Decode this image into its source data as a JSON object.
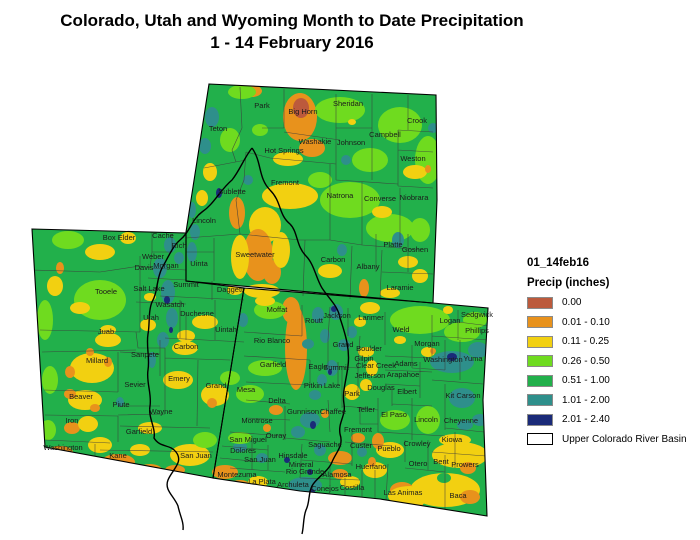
{
  "title": {
    "line1": "Colorado, Utah and Wyoming Month to Date Precipitation",
    "line2": "1 - 14 February 2016"
  },
  "legend": {
    "title": "01_14feb16",
    "subtitle": "Precip (inches)",
    "items": [
      {
        "label": "0.00",
        "color": "#bc5a3c"
      },
      {
        "label": "0.01 - 0.10",
        "color": "#e8921c"
      },
      {
        "label": "0.11 - 0.25",
        "color": "#f2d011"
      },
      {
        "label": "0.26 - 0.50",
        "color": "#6fdb1f"
      },
      {
        "label": "0.51 - 1.00",
        "color": "#22b04b"
      },
      {
        "label": "1.01 - 2.00",
        "color": "#2e8f8b"
      },
      {
        "label": "2.01 - 2.40",
        "color": "#1a2a78"
      }
    ],
    "overlay_item": {
      "label": "Upper Colorado River Basin",
      "color": "#ffffff"
    }
  },
  "map": {
    "states": [
      "Wyoming",
      "Utah",
      "Colorado"
    ],
    "counties": {
      "wyoming": [
        [
          "Park",
          262,
          108
        ],
        [
          "Big Horn",
          303,
          114
        ],
        [
          "Sheridan",
          348,
          106
        ],
        [
          "Crook",
          417,
          123
        ],
        [
          "Campbell",
          385,
          137
        ],
        [
          "Johnson",
          351,
          145
        ],
        [
          "Washakie",
          315,
          144
        ],
        [
          "Hot Springs",
          284,
          153
        ],
        [
          "Teton",
          218,
          131
        ],
        [
          "Weston",
          413,
          161
        ],
        [
          "Fremont",
          285,
          185
        ],
        [
          "Natrona",
          340,
          198
        ],
        [
          "Converse",
          380,
          201
        ],
        [
          "Niobrara",
          414,
          200
        ],
        [
          "Sublette",
          232,
          194
        ],
        [
          "Lincoln",
          204,
          223
        ],
        [
          "Sweetwater",
          255,
          257
        ],
        [
          "Carbon",
          333,
          262
        ],
        [
          "Albany",
          368,
          269
        ],
        [
          "Platte",
          393,
          247
        ],
        [
          "Goshen",
          415,
          252
        ],
        [
          "Laramie",
          400,
          290
        ],
        [
          "Uinta",
          199,
          266
        ]
      ],
      "utah": [
        [
          "Box Elder",
          119,
          240
        ],
        [
          "Cache",
          163,
          238
        ],
        [
          "Rich",
          179,
          248
        ],
        [
          "Weber",
          153,
          259
        ],
        [
          "Davis",
          144,
          270
        ],
        [
          "Morgan",
          166,
          268
        ],
        [
          "Salt Lake",
          149,
          291
        ],
        [
          "Summit",
          186,
          287
        ],
        [
          "Tooele",
          106,
          294
        ],
        [
          "Wasatch",
          170,
          307
        ],
        [
          "Utah",
          151,
          320
        ],
        [
          "Duchesne",
          197,
          316
        ],
        [
          "Uintah",
          226,
          332
        ],
        [
          "Daggett",
          230,
          292
        ],
        [
          "Juab",
          106,
          334
        ],
        [
          "Carbon",
          186,
          349
        ],
        [
          "Sanpete",
          145,
          357
        ],
        [
          "Millard",
          97,
          363
        ],
        [
          "Emery",
          179,
          381
        ],
        [
          "Sevier",
          135,
          387
        ],
        [
          "Grand",
          216,
          388
        ],
        [
          "Beaver",
          81,
          399
        ],
        [
          "Piute",
          121,
          407
        ],
        [
          "Wayne",
          161,
          414
        ],
        [
          "Iron",
          72,
          423
        ],
        [
          "Garfield",
          139,
          434
        ],
        [
          "Washington",
          63,
          450
        ],
        [
          "Kane",
          118,
          458
        ],
        [
          "San Juan",
          196,
          458
        ]
      ],
      "colorado": [
        [
          "Moffat",
          277,
          312
        ],
        [
          "Routt",
          314,
          323
        ],
        [
          "Jackson",
          337,
          318
        ],
        [
          "Larimer",
          371,
          320
        ],
        [
          "Weld",
          401,
          332
        ],
        [
          "Logan",
          450,
          323
        ],
        [
          "Sedgwick",
          477,
          317
        ],
        [
          "Phillips",
          477,
          333
        ],
        [
          "Morgan",
          427,
          346
        ],
        [
          "Rio Blanco",
          272,
          343
        ],
        [
          "Grand",
          343,
          347
        ],
        [
          "Boulder",
          369,
          351
        ],
        [
          "Gilpin",
          364,
          361
        ],
        [
          "Clear Creek",
          376,
          368
        ],
        [
          "Jefferson",
          370,
          378
        ],
        [
          "Adams",
          406,
          366
        ],
        [
          "Arapahoe",
          403,
          377
        ],
        [
          "Washington",
          443,
          362
        ],
        [
          "Yuma",
          473,
          361
        ],
        [
          "Garfield",
          273,
          367
        ],
        [
          "Eagle",
          318,
          369
        ],
        [
          "Summit",
          336,
          370
        ],
        [
          "Pitkin",
          313,
          388
        ],
        [
          "Lake",
          332,
          388
        ],
        [
          "Mesa",
          246,
          392
        ],
        [
          "Delta",
          277,
          403
        ],
        [
          "Gunnison",
          303,
          414
        ],
        [
          "Chaffee",
          333,
          414
        ],
        [
          "Park",
          352,
          396
        ],
        [
          "Douglas",
          381,
          390
        ],
        [
          "Elbert",
          407,
          394
        ],
        [
          "Kit Carson",
          463,
          398
        ],
        [
          "Montrose",
          257,
          423
        ],
        [
          "Ouray",
          276,
          438
        ],
        [
          "San Miguel",
          248,
          442
        ],
        [
          "Teller",
          366,
          412
        ],
        [
          "El Paso",
          394,
          417
        ],
        [
          "Lincoln",
          426,
          422
        ],
        [
          "Cheyenne",
          461,
          423
        ],
        [
          "Fremont",
          358,
          432
        ],
        [
          "Kiowa",
          452,
          442
        ],
        [
          "Custer",
          361,
          448
        ],
        [
          "Pueblo",
          389,
          451
        ],
        [
          "Crowley",
          417,
          446
        ],
        [
          "Saguache",
          325,
          447
        ],
        [
          "Dolores",
          243,
          453
        ],
        [
          "Hinsdale",
          293,
          458
        ],
        [
          "San Juan",
          260,
          462
        ],
        [
          "Otero",
          418,
          466
        ],
        [
          "Bent",
          441,
          464
        ],
        [
          "Prowers",
          465,
          467
        ],
        [
          "Huerfano",
          371,
          469
        ],
        [
          "Mineral",
          301,
          467
        ],
        [
          "Rio Grande",
          305,
          474
        ],
        [
          "Alamosa",
          337,
          477
        ],
        [
          "Montezuma",
          237,
          477
        ],
        [
          "La Plata",
          262,
          484
        ],
        [
          "Archuleta",
          293,
          487
        ],
        [
          "Conejos",
          325,
          491
        ],
        [
          "Costilla",
          352,
          490
        ],
        [
          "Las Animas",
          403,
          495
        ],
        [
          "Baca",
          458,
          498
        ]
      ]
    }
  }
}
